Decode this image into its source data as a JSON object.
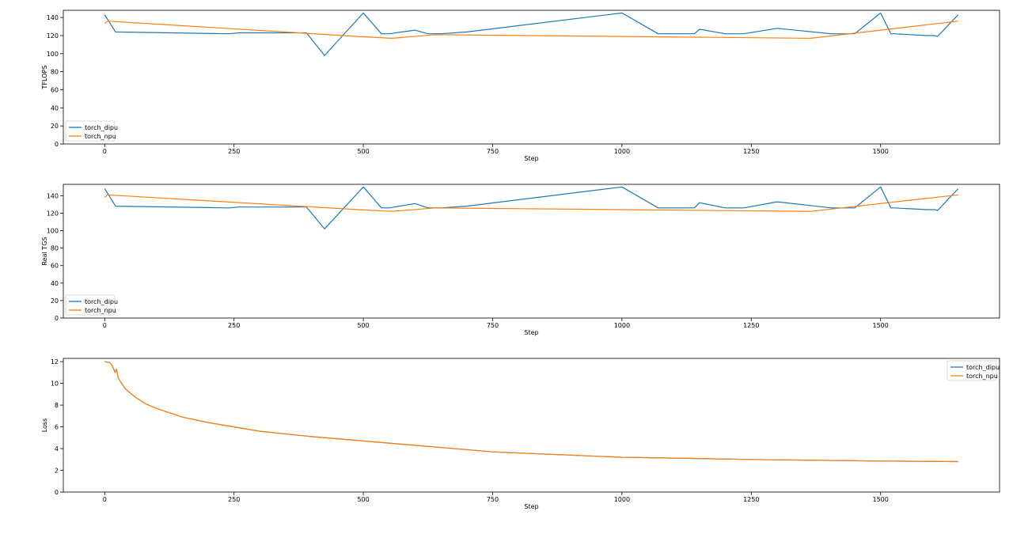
{
  "colors": {
    "torch_dipu": "#1f77b4",
    "torch_npu": "#ff7f0e",
    "axis": "#000000",
    "background": "#ffffff"
  },
  "chart_data": [
    {
      "type": "line",
      "title": "",
      "xlabel": "Step",
      "ylabel": "TFLOPS",
      "xlim": [
        -80,
        1730
      ],
      "ylim": [
        0,
        148
      ],
      "xticks": [
        0,
        250,
        500,
        750,
        1000,
        1250,
        1500
      ],
      "yticks": [
        0,
        20,
        40,
        60,
        80,
        100,
        120,
        140
      ],
      "grid": false,
      "legend": "lower-left",
      "series": [
        {
          "name": "torch_dipu",
          "color": "#1f77b4",
          "x": [
            0,
            21,
            240,
            260,
            290,
            370,
            390,
            425,
            500,
            535,
            550,
            600,
            625,
            650,
            700,
            1000,
            1070,
            1120,
            1140,
            1150,
            1200,
            1235,
            1300,
            1405,
            1440,
            1450,
            1500,
            1520,
            1525,
            1590,
            1605,
            1610,
            1650
          ],
          "y": [
            143,
            124,
            122,
            123,
            123,
            123,
            123,
            98,
            145,
            122,
            122,
            126,
            122,
            122,
            124,
            145,
            122,
            122,
            122,
            127,
            122,
            122,
            128,
            122,
            122,
            122,
            145,
            122,
            122,
            120,
            120,
            119,
            143
          ]
        },
        {
          "name": "torch_npu",
          "color": "#ff7f0e",
          "x": [
            0,
            5,
            490,
            555,
            640,
            1365,
            1650
          ],
          "y": [
            133,
            136,
            119,
            117,
            121,
            117,
            136
          ]
        }
      ]
    },
    {
      "type": "line",
      "title": "",
      "xlabel": "Step",
      "ylabel": "Real TGS",
      "xlim": [
        -80,
        1730
      ],
      "ylim": [
        0,
        153
      ],
      "xticks": [
        0,
        250,
        500,
        750,
        1000,
        1250,
        1500
      ],
      "yticks": [
        0,
        20,
        40,
        60,
        80,
        100,
        120,
        140
      ],
      "grid": false,
      "legend": "lower-left",
      "series": [
        {
          "name": "torch_dipu",
          "color": "#1f77b4",
          "x": [
            0,
            21,
            240,
            260,
            290,
            370,
            390,
            425,
            500,
            535,
            550,
            600,
            625,
            650,
            700,
            1000,
            1070,
            1120,
            1140,
            1150,
            1200,
            1235,
            1300,
            1405,
            1440,
            1450,
            1500,
            1520,
            1525,
            1590,
            1605,
            1610,
            1650
          ],
          "y": [
            148,
            128,
            126,
            127,
            127,
            127,
            127,
            102,
            150,
            126,
            126,
            131,
            126,
            126,
            128,
            150,
            126,
            126,
            126,
            132,
            126,
            126,
            133,
            126,
            126,
            126,
            150,
            126,
            126,
            124,
            124,
            123,
            148
          ]
        },
        {
          "name": "torch_npu",
          "color": "#ff7f0e",
          "x": [
            0,
            5,
            490,
            555,
            640,
            1365,
            1650
          ],
          "y": [
            138,
            141,
            124,
            122,
            126,
            122,
            141
          ]
        }
      ]
    },
    {
      "type": "line",
      "title": "",
      "xlabel": "Step",
      "ylabel": "Loss",
      "xlim": [
        -80,
        1730
      ],
      "ylim": [
        0,
        12.3
      ],
      "xticks": [
        0,
        250,
        500,
        750,
        1000,
        1250,
        1500
      ],
      "yticks": [
        0,
        2,
        4,
        6,
        8,
        10,
        12
      ],
      "grid": false,
      "legend": "upper-right",
      "series": [
        {
          "name": "torch_dipu",
          "color": "#1f77b4",
          "x": [
            0,
            10,
            15,
            20,
            23,
            26,
            30,
            40,
            60,
            80,
            100,
            150,
            200,
            250,
            300,
            400,
            500,
            600,
            750,
            1000,
            1250,
            1500,
            1650
          ],
          "y": [
            12.0,
            11.9,
            11.6,
            11.0,
            11.3,
            10.5,
            10.2,
            9.5,
            8.7,
            8.1,
            7.7,
            6.9,
            6.4,
            6.0,
            5.6,
            5.1,
            4.7,
            4.3,
            3.7,
            3.2,
            3.0,
            2.85,
            2.8
          ]
        },
        {
          "name": "torch_npu",
          "color": "#ff7f0e",
          "x": [
            0,
            10,
            15,
            20,
            23,
            26,
            30,
            40,
            60,
            80,
            100,
            150,
            200,
            250,
            300,
            400,
            500,
            600,
            750,
            1000,
            1250,
            1500,
            1650
          ],
          "y": [
            12.0,
            11.9,
            11.6,
            11.0,
            11.3,
            10.5,
            10.2,
            9.5,
            8.7,
            8.1,
            7.7,
            6.9,
            6.4,
            6.0,
            5.6,
            5.1,
            4.7,
            4.3,
            3.7,
            3.2,
            3.0,
            2.85,
            2.8
          ]
        }
      ]
    }
  ]
}
